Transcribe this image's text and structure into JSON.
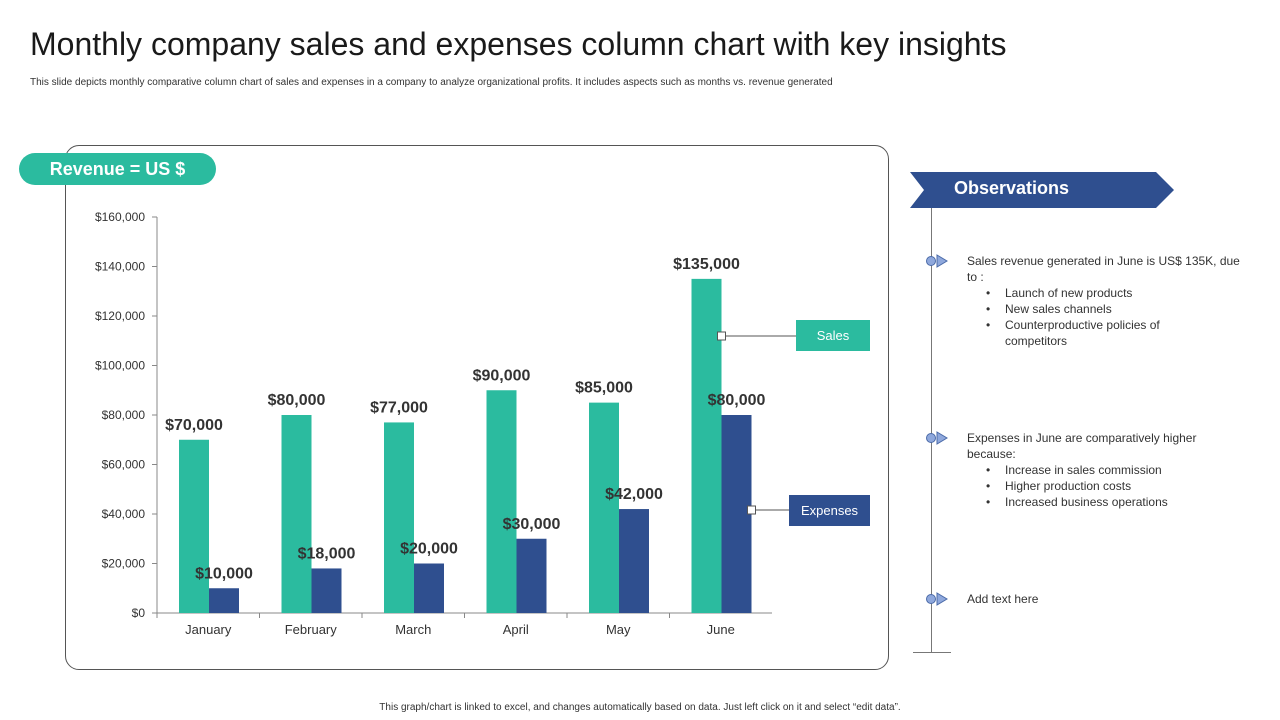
{
  "title": "Monthly company sales and expenses column chart with key insights",
  "subtitle": "This slide depicts monthly comparative column chart of sales and expenses in a company to analyze organizational profits. It includes aspects such as months vs. revenue generated",
  "revenue_label": "Revenue = US $",
  "colors": {
    "sales": "#2bbb9f",
    "expenses": "#2f4f8f",
    "banner": "#2f4f8f"
  },
  "chart_data": {
    "type": "bar",
    "categories": [
      "January",
      "February",
      "March",
      "April",
      "May",
      "June"
    ],
    "series": [
      {
        "name": "Sales",
        "values": [
          70000,
          80000,
          77000,
          90000,
          85000,
          135000
        ]
      },
      {
        "name": "Expenses",
        "values": [
          10000,
          18000,
          20000,
          30000,
          42000,
          80000
        ]
      }
    ],
    "data_labels": {
      "Sales": [
        "$70,000",
        "$80,000",
        "$77,000",
        "$90,000",
        "$85,000",
        "$135,000"
      ],
      "Expenses": [
        "$10,000",
        "$18,000",
        "$20,000",
        "$30,000",
        "$42,000",
        "$80,000"
      ]
    },
    "y_ticks": [
      0,
      20000,
      40000,
      60000,
      80000,
      100000,
      120000,
      140000,
      160000
    ],
    "y_tick_labels": [
      "$0",
      "$20,000",
      "$40,000",
      "$60,000",
      "$80,000",
      "$100,000",
      "$120,000",
      "$140,000",
      "$160,000"
    ],
    "ylim": [
      0,
      160000
    ],
    "xlabel": "",
    "ylabel": "",
    "legend": [
      "Sales",
      "Expenses"
    ],
    "grid": false
  },
  "observations": {
    "title": "Observations",
    "items": [
      {
        "head": "Sales revenue generated in June is US$ 135K, due to :",
        "bullets": [
          "Launch of new products",
          "New sales channels",
          "Counterproductive policies of competitors"
        ]
      },
      {
        "head": "Expenses in June are comparatively higher because:",
        "bullets": [
          "Increase in sales commission",
          "Higher production costs",
          "Increased business operations"
        ]
      },
      {
        "head": "Add text here",
        "bullets": []
      }
    ]
  },
  "footer": "This graph/chart is linked to excel, and changes automatically based on data. Just left click on it and select “edit data”."
}
